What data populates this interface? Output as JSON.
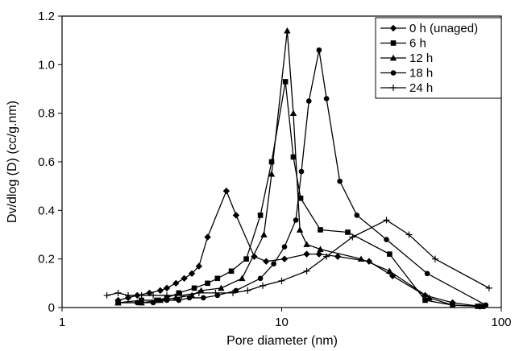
{
  "chart_data": {
    "type": "line",
    "xlabel": "Pore diameter (nm)",
    "ylabel": "Dv/dlog (D) (cc/g.nm)",
    "xscale": "log",
    "xlim": [
      1,
      100
    ],
    "ylim": [
      0,
      1.2
    ],
    "x_ticks": [
      1,
      10,
      100
    ],
    "x_tick_labels": [
      "1",
      "10",
      "100"
    ],
    "y_ticks": [
      0,
      0.2,
      0.4,
      0.6,
      0.8,
      1.0,
      1.2
    ],
    "y_tick_labels": [
      "0",
      "0.2",
      "0.4",
      "0.6",
      "0.8",
      "1.0",
      "1.2"
    ],
    "grid": false,
    "legend_position": "top-right",
    "series": [
      {
        "name": "0 h (unaged)",
        "marker": "diamond",
        "points": [
          [
            1.8,
            0.03
          ],
          [
            2.0,
            0.04
          ],
          [
            2.2,
            0.05
          ],
          [
            2.5,
            0.06
          ],
          [
            2.8,
            0.07
          ],
          [
            3.0,
            0.08
          ],
          [
            3.3,
            0.1
          ],
          [
            3.6,
            0.12
          ],
          [
            3.9,
            0.14
          ],
          [
            4.2,
            0.17
          ],
          [
            4.6,
            0.29
          ],
          [
            5.6,
            0.48
          ],
          [
            6.2,
            0.38
          ],
          [
            7.5,
            0.21
          ],
          [
            8.5,
            0.19
          ],
          [
            10.3,
            0.2
          ],
          [
            13.0,
            0.22
          ],
          [
            14.8,
            0.22
          ],
          [
            18.0,
            0.21
          ],
          [
            25.0,
            0.19
          ],
          [
            32.0,
            0.13
          ],
          [
            45.0,
            0.05
          ],
          [
            60.0,
            0.02
          ],
          [
            80.0,
            0.005
          ]
        ]
      },
      {
        "name": "6 h",
        "marker": "square",
        "points": [
          [
            1.8,
            0.02
          ],
          [
            2.3,
            0.03
          ],
          [
            2.7,
            0.03
          ],
          [
            3.0,
            0.04
          ],
          [
            3.4,
            0.06
          ],
          [
            4.0,
            0.08
          ],
          [
            4.6,
            0.1
          ],
          [
            5.1,
            0.12
          ],
          [
            5.9,
            0.15
          ],
          [
            6.9,
            0.2
          ],
          [
            8.0,
            0.38
          ],
          [
            9.0,
            0.6
          ],
          [
            10.4,
            0.93
          ],
          [
            11.3,
            0.62
          ],
          [
            12.2,
            0.45
          ],
          [
            15.0,
            0.32
          ],
          [
            20.0,
            0.31
          ],
          [
            31.0,
            0.22
          ],
          [
            45.0,
            0.03
          ],
          [
            60.0,
            0.01
          ],
          [
            78.0,
            0.005
          ]
        ]
      },
      {
        "name": "12 h",
        "marker": "triangle",
        "points": [
          [
            1.8,
            0.02
          ],
          [
            2.3,
            0.02
          ],
          [
            2.8,
            0.03
          ],
          [
            3.3,
            0.04
          ],
          [
            3.9,
            0.05
          ],
          [
            4.3,
            0.07
          ],
          [
            5.3,
            0.08
          ],
          [
            6.6,
            0.12
          ],
          [
            8.3,
            0.3
          ],
          [
            9.0,
            0.55
          ],
          [
            10.6,
            1.14
          ],
          [
            11.3,
            0.8
          ],
          [
            12.1,
            0.32
          ],
          [
            13.0,
            0.26
          ],
          [
            15.0,
            0.24
          ],
          [
            23.0,
            0.2
          ],
          [
            31.0,
            0.15
          ],
          [
            47.0,
            0.04
          ],
          [
            60.0,
            0.01
          ],
          [
            82.0,
            0.005
          ]
        ]
      },
      {
        "name": "18 h",
        "marker": "circle",
        "points": [
          [
            1.8,
            0.02
          ],
          [
            2.2,
            0.02
          ],
          [
            2.6,
            0.02
          ],
          [
            3.0,
            0.03
          ],
          [
            3.4,
            0.03
          ],
          [
            3.8,
            0.04
          ],
          [
            4.4,
            0.04
          ],
          [
            5.1,
            0.05
          ],
          [
            6.2,
            0.07
          ],
          [
            8.0,
            0.12
          ],
          [
            9.2,
            0.18
          ],
          [
            10.3,
            0.25
          ],
          [
            11.6,
            0.36
          ],
          [
            12.3,
            0.56
          ],
          [
            13.3,
            0.85
          ],
          [
            14.8,
            1.06
          ],
          [
            16.0,
            0.86
          ],
          [
            18.4,
            0.52
          ],
          [
            22.0,
            0.38
          ],
          [
            30.0,
            0.28
          ],
          [
            46.0,
            0.14
          ],
          [
            85.0,
            0.01
          ]
        ]
      },
      {
        "name": "24 h",
        "marker": "plus",
        "points": [
          [
            1.6,
            0.05
          ],
          [
            1.8,
            0.06
          ],
          [
            2.0,
            0.05
          ],
          [
            2.3,
            0.05
          ],
          [
            2.6,
            0.05
          ],
          [
            3.0,
            0.05
          ],
          [
            3.5,
            0.05
          ],
          [
            4.2,
            0.06
          ],
          [
            5.0,
            0.06
          ],
          [
            6.0,
            0.06
          ],
          [
            7.0,
            0.07
          ],
          [
            8.2,
            0.09
          ],
          [
            10.0,
            0.11
          ],
          [
            13.0,
            0.15
          ],
          [
            16.0,
            0.21
          ],
          [
            21.0,
            0.29
          ],
          [
            30.0,
            0.36
          ],
          [
            38.0,
            0.3
          ],
          [
            50.0,
            0.2
          ],
          [
            88.0,
            0.08
          ]
        ]
      }
    ]
  }
}
